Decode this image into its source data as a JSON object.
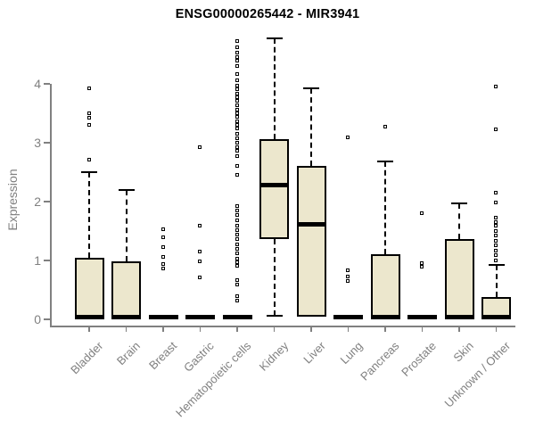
{
  "chart_data": {
    "type": "boxplot",
    "title": "ENSG00000265442 - MIR3941",
    "ylabel": "Expression",
    "xlabel": "",
    "ylim": [
      0,
      4.8
    ],
    "yticks": [
      0,
      1,
      2,
      3,
      4
    ],
    "grid": false,
    "legend": null,
    "colors": {
      "box_fill": "#ECE7CD",
      "box_border": "#000000",
      "axis": "#808080",
      "tick_text": "#808080",
      "title_text": "#000000"
    },
    "categories": [
      "Bladder",
      "Brain",
      "Breast",
      "Gastric",
      "Hematopoietic cells",
      "Kidney",
      "Liver",
      "Lung",
      "Pancreas",
      "Prostate",
      "Skin",
      "Unknown / Other"
    ],
    "boxes": [
      {
        "category": "Bladder",
        "q1": 0,
        "median": 0.04,
        "q3": 1.04,
        "whisker_low": 0,
        "whisker_high": 2.5,
        "outliers": [
          3.92,
          3.5,
          3.42,
          3.3,
          2.7
        ]
      },
      {
        "category": "Brain",
        "q1": 0,
        "median": 0.04,
        "q3": 0.98,
        "whisker_low": 0,
        "whisker_high": 2.2,
        "outliers": []
      },
      {
        "category": "Breast",
        "q1": 0,
        "median": 0.04,
        "q3": 0.06,
        "whisker_low": 0,
        "whisker_high": 0.06,
        "outliers": [
          1.52,
          1.38,
          1.22,
          1.05,
          0.93,
          0.85
        ]
      },
      {
        "category": "Gastric",
        "q1": 0,
        "median": 0.04,
        "q3": 0.06,
        "whisker_low": 0,
        "whisker_high": 0.06,
        "outliers": [
          2.92,
          1.59,
          1.14,
          0.98,
          0.7
        ]
      },
      {
        "category": "Hematopoietic cells",
        "q1": 0,
        "median": 0.04,
        "q3": 0.06,
        "whisker_low": 0,
        "whisker_high": 0.06,
        "outliers": [
          4.72,
          4.62,
          4.52,
          4.45,
          4.38,
          4.3,
          4.16,
          4.06,
          3.96,
          3.9,
          3.83,
          3.76,
          3.7,
          3.63,
          3.56,
          3.5,
          3.43,
          3.36,
          3.3,
          3.23,
          3.15,
          3.07,
          3.0,
          2.92,
          2.85,
          2.76,
          2.6,
          2.45,
          1.92,
          1.84,
          1.76,
          1.68,
          1.59,
          1.51,
          1.43,
          1.35,
          1.27,
          1.19,
          1.11,
          1.03,
          0.96,
          0.9,
          0.66,
          0.58,
          0.38,
          0.31
        ]
      },
      {
        "category": "Kidney",
        "q1": 1.36,
        "median": 2.28,
        "q3": 3.06,
        "whisker_low": 0.06,
        "whisker_high": 4.77,
        "outliers": []
      },
      {
        "category": "Liver",
        "q1": 0.05,
        "median": 1.62,
        "q3": 2.6,
        "whisker_low": 0.05,
        "whisker_high": 3.93,
        "outliers": []
      },
      {
        "category": "Lung",
        "q1": 0,
        "median": 0.04,
        "q3": 0.06,
        "whisker_low": 0,
        "whisker_high": 0.06,
        "outliers": [
          3.08,
          0.82,
          0.72,
          0.65
        ]
      },
      {
        "category": "Pancreas",
        "q1": 0,
        "median": 0.04,
        "q3": 1.1,
        "whisker_low": 0,
        "whisker_high": 2.68,
        "outliers": [
          3.27
        ]
      },
      {
        "category": "Prostate",
        "q1": 0,
        "median": 0.04,
        "q3": 0.06,
        "whisker_low": 0,
        "whisker_high": 0.06,
        "outliers": [
          1.8,
          0.95,
          0.88
        ]
      },
      {
        "category": "Skin",
        "q1": 0,
        "median": 0.04,
        "q3": 1.37,
        "whisker_low": 0,
        "whisker_high": 1.97,
        "outliers": []
      },
      {
        "category": "Unknown / Other",
        "q1": 0,
        "median": 0.04,
        "q3": 0.38,
        "whisker_low": 0,
        "whisker_high": 0.92,
        "outliers": [
          3.95,
          3.22,
          2.14,
          1.97,
          1.72,
          1.65,
          1.58,
          1.5,
          1.42,
          1.33,
          1.25,
          1.16,
          1.08,
          1.0
        ]
      }
    ]
  }
}
